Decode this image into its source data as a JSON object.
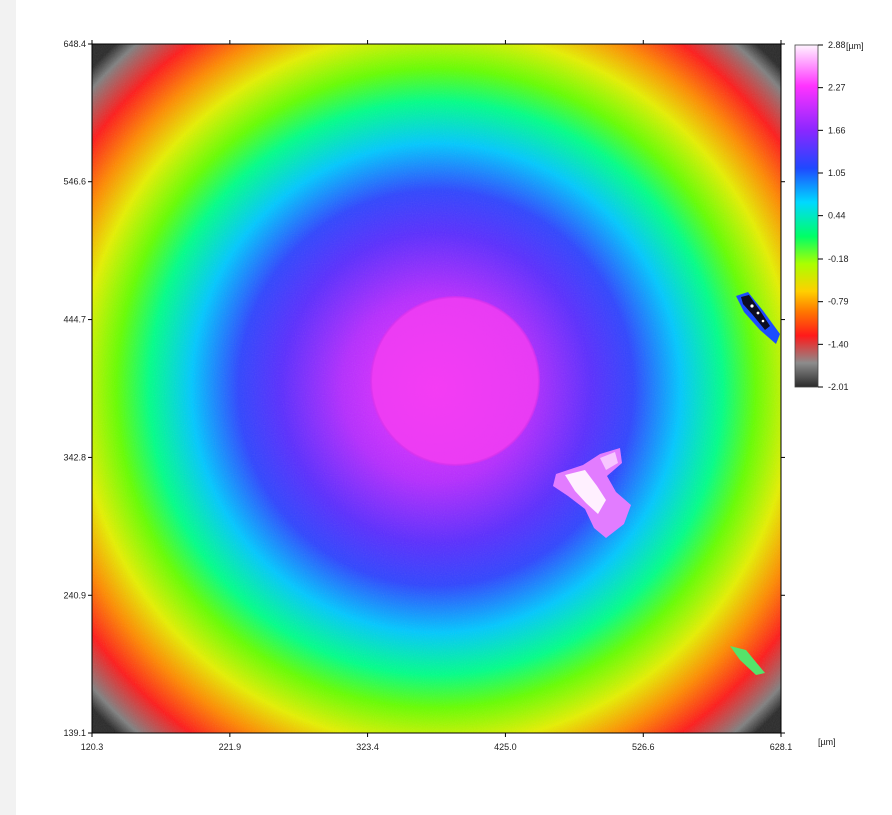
{
  "chart_data": {
    "type": "heatmap",
    "title": "",
    "x_axis": {
      "ticks": [
        "120.3",
        "221.9",
        "323.4",
        "425.0",
        "526.6",
        "628.1"
      ],
      "range": [
        120.3,
        628.1
      ],
      "unit": "[µm]"
    },
    "y_axis": {
      "ticks": [
        "139.1",
        "240.9",
        "342.8",
        "444.7",
        "546.6",
        "648.4"
      ],
      "range": [
        139.1,
        648.4
      ]
    },
    "colorbar": {
      "ticks": [
        "2.88",
        "2.27",
        "1.66",
        "1.05",
        "0.44",
        "-0.18",
        "-0.79",
        "-1.40",
        "-2.01"
      ],
      "range": [
        -2.01,
        2.88
      ],
      "unit": "[µm]",
      "colors": [
        "#fff4ff",
        "#ff33ff",
        "#a026ff",
        "#3a2bff",
        "#00c8ff",
        "#00ff66",
        "#99ff00",
        "#ffd000",
        "#ff7700",
        "#ff1a1a",
        "#808080",
        "#2b2b2b"
      ]
    },
    "surface": {
      "description_levels": "radial height map, peak at center",
      "center": [
        375,
        404
      ],
      "plateau_radius": 84,
      "peak_height": 2.6,
      "plateau_height": 2.55
    }
  }
}
